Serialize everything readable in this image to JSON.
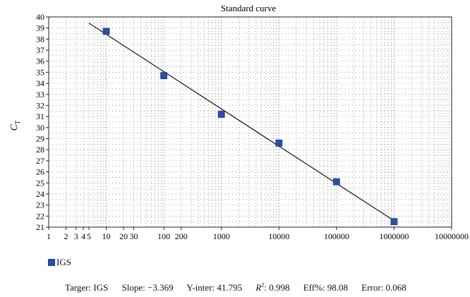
{
  "chart_data": {
    "type": "scatter",
    "title": "Standard curve",
    "ylabel": "C",
    "ylabel_sub": "T",
    "xlabel": "",
    "x_scale": "log",
    "xlim": [
      1,
      10000000
    ],
    "ylim": [
      21,
      40
    ],
    "x_tick_labels": [
      {
        "x": 1,
        "label": "1"
      },
      {
        "x": 2,
        "label": "2"
      },
      {
        "x": 3,
        "label": "3"
      },
      {
        "x": 4,
        "label": "4"
      },
      {
        "x": 5,
        "label": "5"
      },
      {
        "x": 10,
        "label": "10"
      },
      {
        "x": 20,
        "label": "20"
      },
      {
        "x": 30,
        "label": "30"
      },
      {
        "x": 100,
        "label": "100"
      },
      {
        "x": 200,
        "label": "200"
      },
      {
        "x": 1000,
        "label": "1000"
      },
      {
        "x": 10000,
        "label": "10000"
      },
      {
        "x": 100000,
        "label": "100000"
      },
      {
        "x": 1000000,
        "label": "1000000"
      },
      {
        "x": 10000000,
        "label": "10000000"
      }
    ],
    "y_ticks": [
      21,
      22,
      23,
      24,
      25,
      26,
      27,
      28,
      29,
      30,
      31,
      32,
      33,
      34,
      35,
      36,
      37,
      38,
      39,
      40
    ],
    "grid": true,
    "series": [
      {
        "name": "IGS",
        "color": "#2b4fa8",
        "marker": "square",
        "points": [
          {
            "x": 10,
            "y": 38.7
          },
          {
            "x": 100,
            "y": 34.7
          },
          {
            "x": 1000,
            "y": 31.2
          },
          {
            "x": 10000,
            "y": 28.6
          },
          {
            "x": 100000,
            "y": 25.1
          },
          {
            "x": 1000000,
            "y": 21.5
          }
        ]
      }
    ],
    "fit_line": {
      "slope": -3.369,
      "intercept": 41.795,
      "x_from": 5,
      "x_to": 1000000
    },
    "legend": {
      "position": "bottom-left",
      "entries": [
        "IGS"
      ]
    }
  },
  "stats": {
    "target": "Targer: IGS",
    "slope": "Slope: −3.369",
    "yinter": "Y-inter: 41.795",
    "r2_label": "R",
    "r2_exp": "2",
    "r2_value": ": 0.998",
    "eff": "Eff%: 98.08",
    "error": "Error: 0.068"
  }
}
